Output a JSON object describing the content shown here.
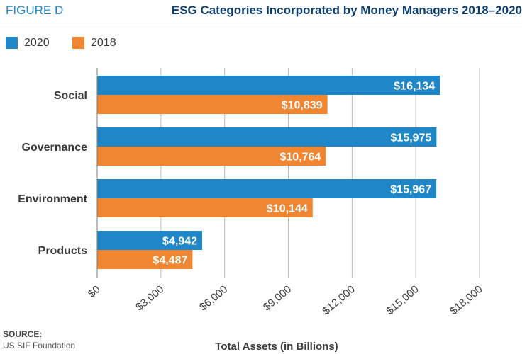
{
  "header": {
    "figure_label": "FIGURE D",
    "title": "ESG Categories Incorporated by Money Managers 2018–2020"
  },
  "source": {
    "label": "SOURCE:",
    "text": "US SIF Foundation"
  },
  "chart_data": {
    "type": "bar",
    "orientation": "horizontal",
    "categories": [
      "Social",
      "Governance",
      "Environment",
      "Products"
    ],
    "series": [
      {
        "name": "2020",
        "color": "#1f87c8",
        "values": [
          16134,
          15975,
          15967,
          4942
        ],
        "labels": [
          "$16,134",
          "$15,975",
          "$15,967",
          "$4,942"
        ]
      },
      {
        "name": "2018",
        "color": "#f08632",
        "values": [
          10839,
          10764,
          10144,
          4487
        ],
        "labels": [
          "$10,839",
          "$10,764",
          "$10,144",
          "$4,487"
        ]
      }
    ],
    "xlabel": "Total Assets (in Billions)",
    "xlim": [
      0,
      18000
    ],
    "xticks": [
      0,
      3000,
      6000,
      9000,
      12000,
      15000,
      18000
    ],
    "xtick_labels": [
      "$0",
      "$3,000",
      "$6,000",
      "$9,000",
      "$12,000",
      "$15,000",
      "$18,000"
    ],
    "grid": true,
    "legend_position": "top-left"
  }
}
